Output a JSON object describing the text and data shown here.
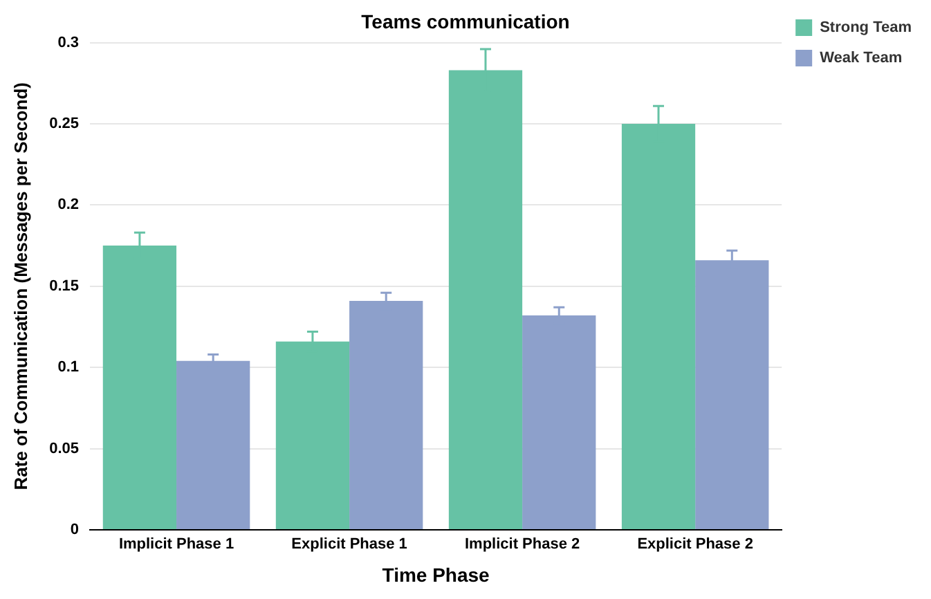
{
  "chart_data": {
    "type": "bar",
    "title": "Teams communication",
    "xlabel": "Time Phase",
    "ylabel": "Rate of Communication (Messages per Second)",
    "categories": [
      "Implicit Phase 1",
      "Explicit Phase 1",
      "Implicit Phase 2",
      "Explicit Phase 2"
    ],
    "series": [
      {
        "name": "Strong Team",
        "color": "#66c2a5",
        "values": [
          0.175,
          0.116,
          0.283,
          0.25
        ],
        "errors": [
          0.008,
          0.006,
          0.013,
          0.011
        ]
      },
      {
        "name": "Weak Team",
        "color": "#8da0cb",
        "values": [
          0.104,
          0.141,
          0.132,
          0.166
        ],
        "errors": [
          0.004,
          0.005,
          0.005,
          0.006
        ]
      }
    ],
    "ylim": [
      0,
      0.3
    ],
    "yticks": [
      0,
      0.05,
      0.1,
      0.15,
      0.2,
      0.25,
      0.3
    ],
    "grid": "y",
    "legend": "top right"
  }
}
